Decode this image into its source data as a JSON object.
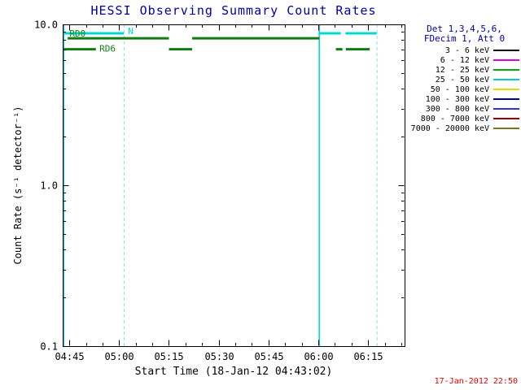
{
  "page": {
    "generated_timestamp": "17-Jan-2012 22:50"
  },
  "colors": {
    "title_text": "#0000a0",
    "legend_header_text": "#0000a0",
    "timestamp_text": "#e00000",
    "axis": "#000000"
  },
  "legend": {
    "header_line1": "Det 1,3,4,5,6,",
    "header_line2": "FDecim 1, Att 0",
    "entries": [
      {
        "label": "3 - 6 keV",
        "color": "#000000"
      },
      {
        "label": "6 - 12 keV",
        "color": "#dd00dd"
      },
      {
        "label": "12 - 25 keV",
        "color": "#00aa00"
      },
      {
        "label": "25 - 50 keV",
        "color": "#00cccc"
      },
      {
        "label": "50 - 100 keV",
        "color": "#dddd00"
      },
      {
        "label": "100 - 300 keV",
        "color": "#000099"
      },
      {
        "label": "300 - 800 keV",
        "color": "#3333dd"
      },
      {
        "label": "800 - 7000 keV",
        "color": "#990000"
      },
      {
        "label": "7000 - 20000 keV",
        "color": "#777722"
      }
    ]
  },
  "chart_data": {
    "type": "line",
    "title": "HESSI Observing Summary Count Rates",
    "xlabel": "Start Time (18-Jan-12 04:43:02)",
    "ylabel": "Count Rate (s⁻¹ detector⁻¹)",
    "y_scale": "log",
    "ylim": [
      0.1,
      10.0
    ],
    "xlim_minutes": [
      0,
      103
    ],
    "x_major_step": 15,
    "x_minor_step": 5,
    "x_minor_phase": 2,
    "x_ticks": [
      {
        "t": 2,
        "label": "04:45"
      },
      {
        "t": 17,
        "label": "05:00"
      },
      {
        "t": 32,
        "label": "05:15"
      },
      {
        "t": 47,
        "label": "05:30"
      },
      {
        "t": 62,
        "label": "05:45"
      },
      {
        "t": 77,
        "label": "06:00"
      },
      {
        "t": 92,
        "label": "06:15"
      }
    ],
    "y_ticks": [
      {
        "v": 0.1,
        "label": "0.1"
      },
      {
        "v": 1.0,
        "label": "1.0"
      },
      {
        "v": 10.0,
        "label": "10.0"
      }
    ],
    "series": [
      {
        "name": "12 - 25 keV",
        "color": "#107c10",
        "width": 3,
        "segments": [
          {
            "value": 8.2,
            "t1": 1.5,
            "t2": 32
          },
          {
            "value": 8.2,
            "t1": 39,
            "t2": 77.3
          },
          {
            "value": 7.0,
            "t1": 0.3,
            "t2": 10
          },
          {
            "value": 7.0,
            "t1": 32,
            "t2": 39
          },
          {
            "value": 7.0,
            "t1": 82.3,
            "t2": 84.3
          },
          {
            "value": 7.0,
            "t1": 85.3,
            "t2": 92.5
          }
        ]
      },
      {
        "name": "25 - 50 keV",
        "color": "#00d8d8",
        "width": 3,
        "segments": [
          {
            "value": 8.8,
            "t1": 0.3,
            "t2": 18.4
          },
          {
            "value": 8.8,
            "t1": 77.3,
            "t2": 83.8
          },
          {
            "value": 8.8,
            "t1": 85.2,
            "t2": 94.6
          }
        ]
      }
    ],
    "event_lines": [
      {
        "t": 0.3,
        "style": "solid",
        "color": "#00d8d8"
      },
      {
        "t": 18.5,
        "style": "dashed",
        "color": "#8ae8e8"
      },
      {
        "t": 77.3,
        "style": "solid",
        "color": "#00d8d8"
      },
      {
        "t": 94.7,
        "style": "dashed",
        "color": "#8ae8e8"
      }
    ],
    "annotations": [
      {
        "text": "RD0",
        "t": 4.5,
        "value": 8.7,
        "color": "#107c10"
      },
      {
        "text": "RD6",
        "t": 13.5,
        "value": 7.0,
        "color": "#107c10"
      },
      {
        "text": "N",
        "t": 20.5,
        "value": 9.0,
        "color": "#00d8d8"
      }
    ]
  }
}
